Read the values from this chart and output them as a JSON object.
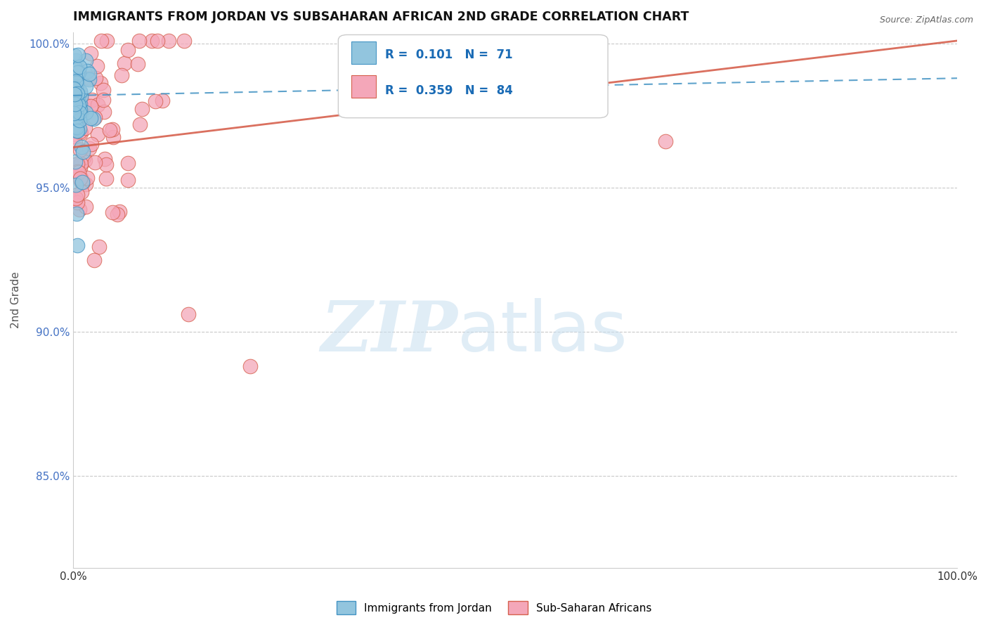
{
  "title": "IMMIGRANTS FROM JORDAN VS SUBSAHARAN AFRICAN 2ND GRADE CORRELATION CHART",
  "source": "Source: ZipAtlas.com",
  "ylabel": "2nd Grade",
  "jordan_R": 0.101,
  "jordan_N": 71,
  "subsaharan_R": 0.359,
  "subsaharan_N": 84,
  "jordan_color": "#92c5de",
  "jordan_edge_color": "#4393c3",
  "subsaharan_color": "#f4a7b9",
  "subsaharan_edge_color": "#d6604d",
  "jordan_line_color": "#4393c3",
  "subsaharan_line_color": "#e8546a",
  "legend_label_jordan": "Immigrants from Jordan",
  "legend_label_subsaharan": "Sub-Saharan Africans",
  "ytick_color": "#4472c4",
  "xlim": [
    0,
    1.0
  ],
  "ylim": [
    0.818,
    1.004
  ],
  "yticks": [
    0.85,
    0.9,
    0.95,
    1.0
  ],
  "ytick_labels": [
    "85.0%",
    "90.0%",
    "95.0%",
    "100.0%"
  ]
}
